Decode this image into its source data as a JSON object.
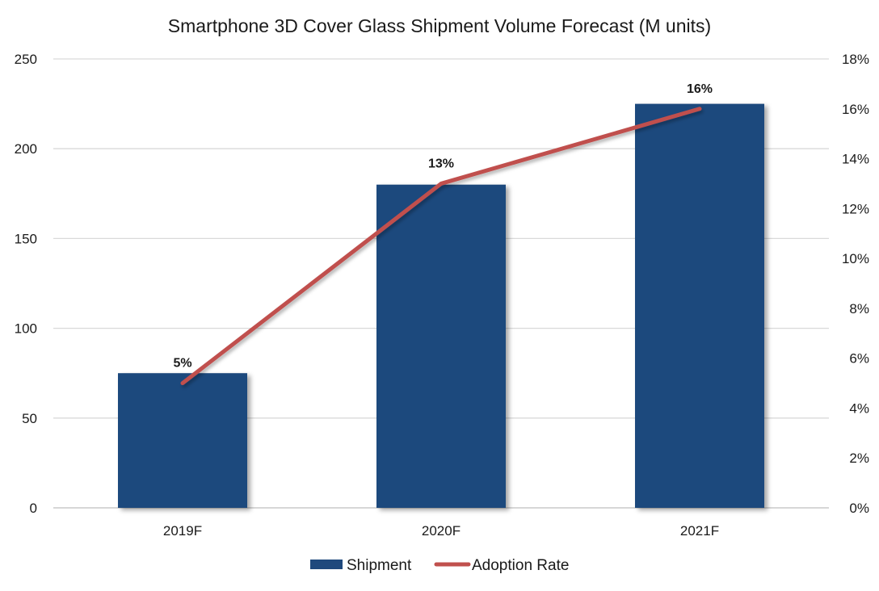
{
  "chart_data": {
    "type": "bar",
    "title": "Smartphone 3D Cover Glass Shipment Volume Forecast (M units)",
    "categories": [
      "2019F",
      "2020F",
      "2021F"
    ],
    "series": [
      {
        "name": "Shipment",
        "type": "bar",
        "axis": "left",
        "values": [
          75,
          180,
          225
        ],
        "color": "#1F497D"
      },
      {
        "name": "Adoption Rate",
        "type": "line",
        "axis": "right",
        "values": [
          5,
          13,
          16
        ],
        "color": "#C0504D",
        "data_labels": [
          "5%",
          "13%",
          "16%"
        ]
      }
    ],
    "y_left": {
      "min": 0,
      "max": 250,
      "ticks": [
        "0",
        "50",
        "100",
        "150",
        "200",
        "250"
      ]
    },
    "y_right": {
      "min": 0,
      "max": 18,
      "ticks": [
        "0%",
        "2%",
        "4%",
        "6%",
        "8%",
        "10%",
        "12%",
        "14%",
        "16%",
        "18%"
      ]
    },
    "grid": true,
    "legend_position": "bottom"
  }
}
